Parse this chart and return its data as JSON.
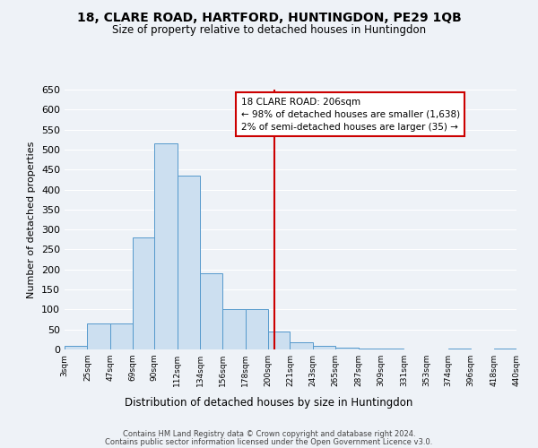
{
  "title": "18, CLARE ROAD, HARTFORD, HUNTINGDON, PE29 1QB",
  "subtitle": "Size of property relative to detached houses in Huntingdon",
  "xlabel": "Distribution of detached houses by size in Huntingdon",
  "ylabel": "Number of detached properties",
  "bar_edges": [
    3,
    25,
    47,
    69,
    90,
    112,
    134,
    156,
    178,
    200,
    221,
    243,
    265,
    287,
    309,
    331,
    353,
    374,
    396,
    418,
    440
  ],
  "bar_heights": [
    10,
    65,
    65,
    280,
    515,
    435,
    190,
    100,
    100,
    45,
    18,
    10,
    5,
    3,
    2,
    0,
    0,
    2,
    0,
    2
  ],
  "tick_labels": [
    "3sqm",
    "25sqm",
    "47sqm",
    "69sqm",
    "90sqm",
    "112sqm",
    "134sqm",
    "156sqm",
    "178sqm",
    "200sqm",
    "221sqm",
    "243sqm",
    "265sqm",
    "287sqm",
    "309sqm",
    "331sqm",
    "353sqm",
    "374sqm",
    "396sqm",
    "418sqm",
    "440sqm"
  ],
  "bar_color": "#ccdff0",
  "bar_edge_color": "#5599cc",
  "vline_x": 206,
  "vline_color": "#cc0000",
  "ylim": [
    0,
    650
  ],
  "yticks": [
    0,
    50,
    100,
    150,
    200,
    250,
    300,
    350,
    400,
    450,
    500,
    550,
    600,
    650
  ],
  "annotation_title": "18 CLARE ROAD: 206sqm",
  "annotation_line1": "← 98% of detached houses are smaller (1,638)",
  "annotation_line2": "2% of semi-detached houses are larger (35) →",
  "footer1": "Contains HM Land Registry data © Crown copyright and database right 2024.",
  "footer2": "Contains public sector information licensed under the Open Government Licence v3.0.",
  "bg_color": "#eef2f7",
  "grid_color": "#ffffff"
}
